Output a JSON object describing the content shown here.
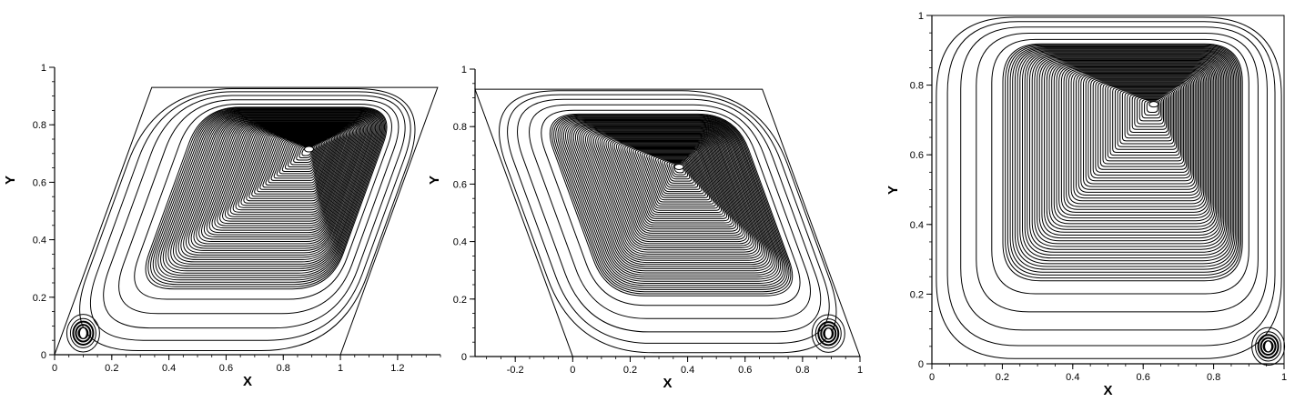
{
  "chart_data": [
    {
      "type": "streamline",
      "xlabel": "X",
      "ylabel": "Y",
      "xlim": [
        0,
        1.35
      ],
      "ylim": [
        0,
        1.0
      ],
      "xticks": [
        0,
        0.2,
        0.4,
        0.6,
        0.8,
        1,
        1.2
      ],
      "xtick_labels": [
        "0",
        "0.2",
        "0.4",
        "0.6",
        "0.8",
        "1",
        "1.2"
      ],
      "yticks": [
        0,
        0.2,
        0.4,
        0.6,
        0.8,
        1
      ],
      "ytick_labels": [
        "0",
        "0.2",
        "0.4",
        "0.6",
        "0.8",
        "1"
      ],
      "domain_polygon": [
        [
          0,
          0
        ],
        [
          1.0,
          0
        ],
        [
          1.34,
          0.93
        ],
        [
          0.34,
          0.93
        ]
      ],
      "primary_vortex_center": [
        0.89,
        0.715
      ],
      "secondary_vortex_center": [
        0.1,
        0.075
      ],
      "secondary_vortex_corner": "bottom-left"
    },
    {
      "type": "streamline",
      "xlabel": "X",
      "ylabel": "Y",
      "xlim": [
        -0.34,
        1.0
      ],
      "ylim": [
        0,
        1.0
      ],
      "xticks": [
        -0.2,
        0,
        0.2,
        0.4,
        0.6,
        0.8,
        1
      ],
      "xtick_labels": [
        "-0.2",
        "0",
        "0.2",
        "0.4",
        "0.6",
        "0.8",
        "1"
      ],
      "yticks": [
        0,
        0.2,
        0.4,
        0.6,
        0.8,
        1
      ],
      "ytick_labels": [
        "0",
        "0.2",
        "0.4",
        "0.6",
        "0.8",
        "1"
      ],
      "domain_polygon": [
        [
          0,
          0
        ],
        [
          1.0,
          0
        ],
        [
          0.66,
          0.93
        ],
        [
          -0.34,
          0.93
        ]
      ],
      "primary_vortex_center": [
        0.37,
        0.66
      ],
      "secondary_vortex_center": [
        0.89,
        0.08
      ],
      "secondary_vortex_corner": "bottom-right"
    },
    {
      "type": "streamline",
      "xlabel": "X",
      "ylabel": "Y",
      "xlim": [
        0,
        1.0
      ],
      "ylim": [
        0,
        1.0
      ],
      "xticks": [
        0,
        0.2,
        0.4,
        0.6,
        0.8,
        1
      ],
      "xtick_labels": [
        "0",
        "0.2",
        "0.4",
        "0.6",
        "0.8",
        "1"
      ],
      "yticks": [
        0,
        0.2,
        0.4,
        0.6,
        0.8,
        1
      ],
      "ytick_labels": [
        "0",
        "0.2",
        "0.4",
        "0.6",
        "0.8",
        "1"
      ],
      "domain_polygon": [
        [
          0,
          0
        ],
        [
          1,
          0
        ],
        [
          1,
          1
        ],
        [
          0,
          1
        ]
      ],
      "primary_vortex_center": [
        0.63,
        0.745
      ],
      "secondary_vortex_center": [
        0.955,
        0.05
      ],
      "secondary_vortex_corner": "bottom-right"
    }
  ]
}
